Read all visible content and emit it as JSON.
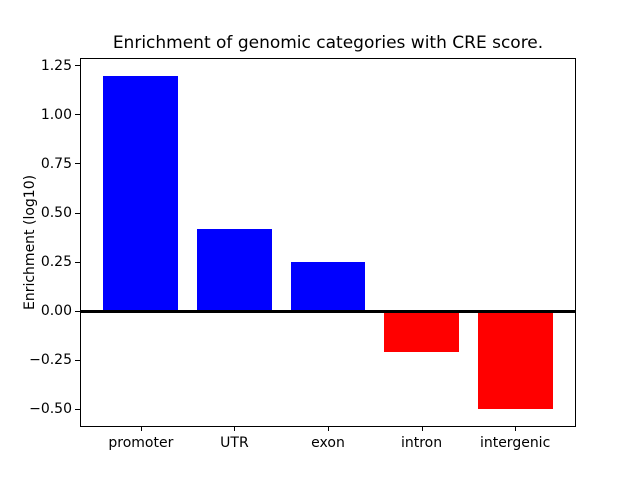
{
  "figure": {
    "title": "Enrichment of genomic categories with CRE score.",
    "ylabel": "Enrichment (log10)"
  },
  "chart_data": {
    "type": "bar",
    "title": "Enrichment of genomic categories with CRE score.",
    "xlabel": "",
    "ylabel": "Enrichment (log10)",
    "categories": [
      "promoter",
      "UTR",
      "exon",
      "intron",
      "intergenic"
    ],
    "values": [
      1.2,
      0.42,
      0.25,
      -0.21,
      -0.5
    ],
    "bar_colors": [
      "#0000ff",
      "#0000ff",
      "#0000ff",
      "#ff0000",
      "#ff0000"
    ],
    "positive_color": "#0000ff",
    "negative_color": "#ff0000",
    "yticks": [
      -0.5,
      -0.25,
      0.0,
      0.25,
      0.5,
      0.75,
      1.0,
      1.25
    ],
    "ylim": [
      -0.585,
      1.285
    ],
    "bar_width_fraction": 0.8,
    "x_margin": 0.64,
    "zero_line": true,
    "zero_line_color": "#000000",
    "grid": false,
    "legend_position": "none",
    "background_color": "#ffffff",
    "spine_color": "#000000",
    "text_color": "#000000"
  }
}
